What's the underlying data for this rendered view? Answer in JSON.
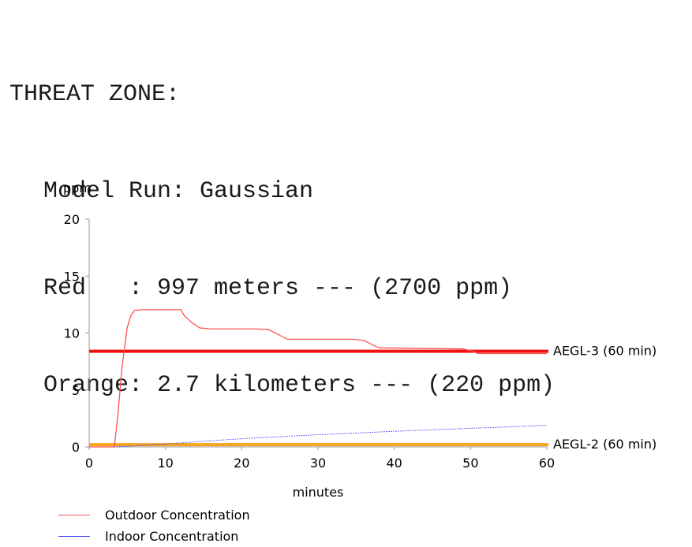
{
  "threat_zone": {
    "heading": "THREAT ZONE:",
    "model_run": "Model Run: Gaussian",
    "red": "Red   : 997 meters --- (2700 ppm)",
    "orange": "Orange: 2.7 kilometers --- (220 ppm)"
  },
  "chart_data": {
    "type": "line",
    "ylabel": "ppm",
    "xlabel": "minutes",
    "xlim": [
      0,
      60
    ],
    "ylim": [
      0,
      20
    ],
    "xticks": [
      0,
      10,
      20,
      30,
      40,
      50,
      60
    ],
    "yticks": [
      0,
      5,
      10,
      15,
      20
    ],
    "series": [
      {
        "name": "Outdoor Concentration",
        "color": "#ff5050",
        "style": "solid",
        "x": [
          0,
          3.3,
          3.8,
          4.3,
          5.0,
          5.5,
          6.0,
          7.0,
          12.0,
          12.5,
          13.5,
          14.5,
          16.0,
          22.0,
          23.5,
          25.0,
          26.0,
          34.5,
          36.0,
          37.5,
          38.0,
          49.0,
          50.0,
          51.0,
          60.0
        ],
        "y": [
          0,
          0,
          3.0,
          7.0,
          10.5,
          11.6,
          12.0,
          12.05,
          12.05,
          11.5,
          10.9,
          10.45,
          10.35,
          10.35,
          10.3,
          9.8,
          9.45,
          9.45,
          9.35,
          8.85,
          8.7,
          8.6,
          8.45,
          8.2,
          8.2
        ]
      },
      {
        "name": "Indoor Concentration",
        "color": "#4040ff",
        "style": "dotted",
        "x": [
          3.3,
          5,
          10,
          15,
          20,
          25,
          30,
          35,
          40,
          45,
          50,
          55,
          60
        ],
        "y": [
          0,
          0.06,
          0.25,
          0.5,
          0.72,
          0.9,
          1.07,
          1.22,
          1.37,
          1.5,
          1.63,
          1.76,
          1.9
        ]
      }
    ],
    "thresholds": [
      {
        "label": "AEGL-3 (60 min)",
        "value": 8.4,
        "color": "#ee1111"
      },
      {
        "label": "AEGL-2 (60 min)",
        "value": 0.2,
        "color": "#f7a51d"
      }
    ],
    "legend": [
      {
        "label": "Outdoor Concentration",
        "color": "#ff5050"
      },
      {
        "label": "Indoor Concentration",
        "color": "#4040ff"
      }
    ]
  }
}
